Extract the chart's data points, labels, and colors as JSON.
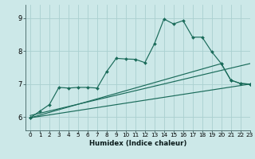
{
  "xlabel": "Humidex (Indice chaleur)",
  "xlim": [
    -0.5,
    23
  ],
  "ylim": [
    5.6,
    9.4
  ],
  "bg_color": "#cce8e8",
  "grid_color": "#aad0d0",
  "line_color": "#1a6b5a",
  "x_ticks": [
    0,
    1,
    2,
    3,
    4,
    5,
    6,
    7,
    8,
    9,
    10,
    11,
    12,
    13,
    14,
    15,
    16,
    17,
    18,
    19,
    20,
    21,
    22,
    23
  ],
  "y_ticks": [
    6,
    7,
    8,
    9
  ],
  "line1_x": [
    0,
    1,
    2,
    3,
    4,
    5,
    6,
    7,
    8,
    9,
    10,
    11,
    12,
    13,
    14,
    15,
    16,
    17,
    18,
    19,
    20,
    21,
    22,
    23
  ],
  "line1_y": [
    5.98,
    6.18,
    6.38,
    6.9,
    6.88,
    6.9,
    6.9,
    6.88,
    7.38,
    7.78,
    7.76,
    7.75,
    7.65,
    8.22,
    8.97,
    8.82,
    8.92,
    8.42,
    8.42,
    7.98,
    7.62,
    7.12,
    7.02,
    7.0
  ],
  "line2_x": [
    0,
    23
  ],
  "line2_y": [
    5.98,
    7.0
  ],
  "line3_x": [
    0,
    23
  ],
  "line3_y": [
    6.05,
    7.62
  ],
  "line4_x": [
    0,
    20,
    21,
    22,
    23
  ],
  "line4_y": [
    5.98,
    7.62,
    7.12,
    7.02,
    7.0
  ]
}
